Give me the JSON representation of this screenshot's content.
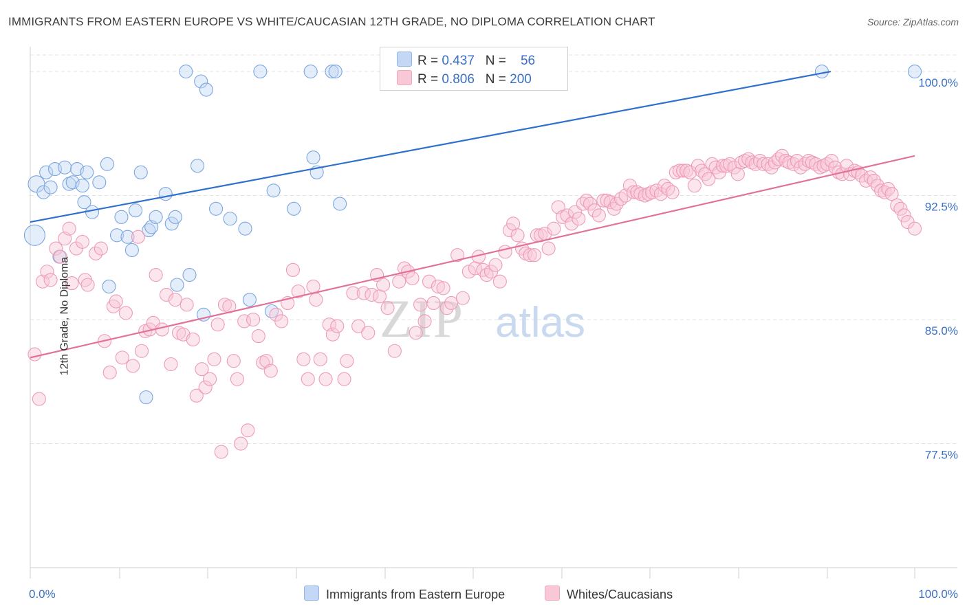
{
  "title": "IMMIGRANTS FROM EASTERN EUROPE VS WHITE/CAUCASIAN 12TH GRADE, NO DIPLOMA CORRELATION CHART",
  "source": "Source: ZipAtlas.com",
  "watermark": {
    "zip": "ZIP",
    "atlas": "atlas"
  },
  "legend": {
    "blue": {
      "r_label": "R = ",
      "r_value": "0.437",
      "n_label": "N = ",
      "n_value": "56"
    },
    "pink": {
      "r_label": "R = ",
      "r_value": "0.806",
      "n_label": "N = ",
      "n_value": "200"
    }
  },
  "colors": {
    "blue": "#8fb4e8",
    "blue_line": "#2f6fce",
    "pink": "#f2a7bf",
    "pink_line": "#e2729b",
    "grid": "#e3e3e3",
    "tick_label": "#3a6fc4"
  },
  "chart_data": {
    "type": "scatter",
    "xlabel": "",
    "ylabel": "12th Grade, No Diploma",
    "xlim": [
      0,
      100
    ],
    "ylim": [
      70.0,
      101.0
    ],
    "x_tick_labels": [
      "0.0%",
      "100.0%"
    ],
    "y_ticks": [
      77.5,
      85.0,
      92.5,
      100.0
    ],
    "y_tick_labels": [
      "77.5%",
      "85.0%",
      "92.5%",
      "100.0%"
    ],
    "grid": true,
    "legend_position": "top-center",
    "series": [
      {
        "name": "Immigrants from Eastern Europe",
        "color": "#8fb4e8",
        "trend": {
          "x0": 0,
          "y0": 90.9,
          "x1": 90.5,
          "y1": 100.0
        },
        "points": [
          [
            0.7,
            93.2
          ],
          [
            1.5,
            92.7
          ],
          [
            1.8,
            93.9
          ],
          [
            2.3,
            93.0
          ],
          [
            2.8,
            94.1
          ],
          [
            3.3,
            88.8
          ],
          [
            3.9,
            94.2
          ],
          [
            4.4,
            93.2
          ],
          [
            4.8,
            93.3
          ],
          [
            5.3,
            94.1
          ],
          [
            5.9,
            93.1
          ],
          [
            6.4,
            93.9
          ],
          [
            6.1,
            92.1
          ],
          [
            7.0,
            91.5
          ],
          [
            7.8,
            93.3
          ],
          [
            8.7,
            94.4
          ],
          [
            8.9,
            87.0
          ],
          [
            9.8,
            90.1
          ],
          [
            10.3,
            91.2
          ],
          [
            11.0,
            90.0
          ],
          [
            11.5,
            89.2
          ],
          [
            11.9,
            91.6
          ],
          [
            12.5,
            93.9
          ],
          [
            13.1,
            80.3
          ],
          [
            13.4,
            90.4
          ],
          [
            13.7,
            90.6
          ],
          [
            14.2,
            91.2
          ],
          [
            15.3,
            92.6
          ],
          [
            16.0,
            90.8
          ],
          [
            16.4,
            91.2
          ],
          [
            16.6,
            87.1
          ],
          [
            18.0,
            87.7
          ],
          [
            17.6,
            100.0
          ],
          [
            19.3,
            99.4
          ],
          [
            18.9,
            94.3
          ],
          [
            19.9,
            98.9
          ],
          [
            19.6,
            85.3
          ],
          [
            21.0,
            91.7
          ],
          [
            22.6,
            91.1
          ],
          [
            24.3,
            90.5
          ],
          [
            24.8,
            86.2
          ],
          [
            26.0,
            100.0
          ],
          [
            27.3,
            85.5
          ],
          [
            27.5,
            92.8
          ],
          [
            29.8,
            91.7
          ],
          [
            31.7,
            100.0
          ],
          [
            32.0,
            94.8
          ],
          [
            32.4,
            93.9
          ],
          [
            34.1,
            100.0
          ],
          [
            34.5,
            100.0
          ],
          [
            35.0,
            92.0
          ],
          [
            89.5,
            100.0
          ],
          [
            100.0,
            100.0
          ],
          [
            0.5,
            90.1
          ]
        ]
      },
      {
        "name": "Whites/Caucasians",
        "color": "#f2a7bf",
        "trend": {
          "x0": 0,
          "y0": 82.7,
          "x1": 100,
          "y1": 94.9
        },
        "points": [
          [
            0.5,
            82.9
          ],
          [
            1.0,
            80.2
          ],
          [
            1.4,
            87.3
          ],
          [
            1.9,
            87.9
          ],
          [
            2.3,
            87.4
          ],
          [
            2.9,
            89.3
          ],
          [
            3.4,
            88.8
          ],
          [
            3.9,
            89.9
          ],
          [
            4.4,
            90.5
          ],
          [
            4.7,
            87.2
          ],
          [
            5.2,
            89.3
          ],
          [
            5.9,
            89.7
          ],
          [
            6.2,
            87.4
          ],
          [
            6.5,
            87.1
          ],
          [
            7.4,
            89.0
          ],
          [
            8.0,
            89.3
          ],
          [
            8.4,
            83.7
          ],
          [
            9.0,
            81.8
          ],
          [
            9.4,
            85.8
          ],
          [
            9.7,
            86.1
          ],
          [
            10.4,
            82.7
          ],
          [
            10.8,
            85.4
          ],
          [
            11.6,
            82.2
          ],
          [
            12.2,
            90.0
          ],
          [
            12.6,
            83.1
          ],
          [
            13.0,
            84.3
          ],
          [
            13.5,
            84.4
          ],
          [
            13.9,
            84.8
          ],
          [
            14.2,
            87.7
          ],
          [
            14.9,
            84.4
          ],
          [
            15.4,
            86.5
          ],
          [
            15.9,
            82.3
          ],
          [
            16.4,
            86.2
          ],
          [
            16.8,
            84.2
          ],
          [
            17.3,
            84.1
          ],
          [
            17.7,
            85.9
          ],
          [
            18.4,
            83.8
          ],
          [
            18.8,
            80.4
          ],
          [
            19.4,
            82.0
          ],
          [
            19.8,
            80.9
          ],
          [
            20.3,
            81.4
          ],
          [
            20.8,
            82.6
          ],
          [
            21.2,
            84.7
          ],
          [
            21.6,
            77.0
          ],
          [
            22.0,
            85.9
          ],
          [
            22.5,
            85.8
          ],
          [
            23.0,
            82.5
          ],
          [
            23.4,
            81.4
          ],
          [
            23.8,
            77.5
          ],
          [
            24.2,
            84.9
          ],
          [
            24.6,
            78.3
          ],
          [
            25.2,
            85.0
          ],
          [
            25.8,
            84.0
          ],
          [
            26.3,
            82.4
          ],
          [
            26.7,
            82.5
          ],
          [
            27.2,
            81.9
          ],
          [
            27.8,
            85.3
          ],
          [
            28.4,
            84.9
          ],
          [
            29.1,
            86.0
          ],
          [
            29.7,
            88.0
          ],
          [
            30.3,
            86.7
          ],
          [
            30.9,
            82.6
          ],
          [
            31.4,
            81.4
          ],
          [
            32.0,
            87.0
          ],
          [
            32.3,
            86.2
          ],
          [
            32.8,
            82.6
          ],
          [
            33.4,
            81.4
          ],
          [
            33.8,
            84.7
          ],
          [
            34.2,
            84.1
          ],
          [
            34.7,
            84.6
          ],
          [
            35.5,
            81.4
          ],
          [
            35.8,
            82.5
          ],
          [
            36.5,
            86.6
          ],
          [
            37.1,
            84.6
          ],
          [
            37.7,
            86.6
          ],
          [
            38.2,
            84.2
          ],
          [
            38.6,
            86.5
          ],
          [
            39.2,
            87.7
          ],
          [
            39.5,
            86.4
          ],
          [
            39.9,
            87.1
          ],
          [
            40.4,
            85.7
          ],
          [
            41.2,
            83.1
          ],
          [
            41.7,
            87.3
          ],
          [
            42.3,
            88.1
          ],
          [
            42.7,
            87.9
          ],
          [
            43.2,
            87.5
          ],
          [
            43.6,
            84.2
          ],
          [
            44.1,
            85.9
          ],
          [
            44.6,
            84.9
          ],
          [
            45.1,
            87.3
          ],
          [
            45.6,
            86.0
          ],
          [
            46.1,
            87.0
          ],
          [
            46.7,
            86.9
          ],
          [
            47.1,
            85.7
          ],
          [
            47.6,
            86.0
          ],
          [
            48.3,
            88.9
          ],
          [
            48.9,
            86.3
          ],
          [
            49.6,
            87.9
          ],
          [
            50.3,
            88.1
          ],
          [
            50.7,
            88.8
          ],
          [
            51.2,
            88.0
          ],
          [
            51.6,
            87.7
          ],
          [
            52.1,
            87.9
          ],
          [
            52.6,
            88.3
          ],
          [
            53.1,
            87.3
          ],
          [
            53.7,
            89.1
          ],
          [
            54.2,
            90.4
          ],
          [
            54.6,
            90.8
          ],
          [
            55.1,
            90.1
          ],
          [
            55.6,
            89.3
          ],
          [
            56.0,
            89.0
          ],
          [
            56.5,
            88.9
          ],
          [
            57.0,
            88.9
          ],
          [
            57.3,
            90.1
          ],
          [
            57.7,
            90.1
          ],
          [
            58.2,
            90.2
          ],
          [
            58.6,
            89.3
          ],
          [
            59.2,
            90.5
          ],
          [
            59.7,
            91.8
          ],
          [
            60.2,
            91.2
          ],
          [
            60.7,
            91.3
          ],
          [
            61.2,
            90.8
          ],
          [
            61.6,
            91.5
          ],
          [
            62.0,
            91.1
          ],
          [
            62.5,
            92.0
          ],
          [
            62.9,
            92.2
          ],
          [
            63.3,
            92.0
          ],
          [
            63.8,
            91.6
          ],
          [
            64.3,
            91.3
          ],
          [
            64.8,
            92.2
          ],
          [
            65.2,
            92.2
          ],
          [
            65.6,
            92.1
          ],
          [
            66.0,
            91.7
          ],
          [
            66.3,
            92.0
          ],
          [
            66.8,
            92.3
          ],
          [
            67.3,
            92.5
          ],
          [
            67.8,
            93.1
          ],
          [
            68.2,
            92.7
          ],
          [
            68.6,
            92.7
          ],
          [
            69.0,
            92.6
          ],
          [
            69.5,
            92.5
          ],
          [
            69.9,
            92.6
          ],
          [
            70.3,
            92.7
          ],
          [
            70.8,
            92.8
          ],
          [
            71.3,
            92.6
          ],
          [
            71.7,
            93.1
          ],
          [
            72.1,
            92.9
          ],
          [
            72.6,
            92.7
          ],
          [
            73.0,
            93.9
          ],
          [
            73.4,
            94.0
          ],
          [
            73.8,
            94.0
          ],
          [
            74.2,
            94.0
          ],
          [
            74.6,
            93.9
          ],
          [
            75.1,
            93.1
          ],
          [
            75.5,
            94.3
          ],
          [
            75.9,
            94.0
          ],
          [
            76.3,
            93.8
          ],
          [
            76.7,
            93.5
          ],
          [
            77.1,
            94.4
          ],
          [
            77.5,
            94.2
          ],
          [
            77.9,
            93.9
          ],
          [
            78.3,
            94.3
          ],
          [
            78.7,
            94.3
          ],
          [
            79.1,
            94.4
          ],
          [
            79.6,
            94.2
          ],
          [
            80.0,
            93.8
          ],
          [
            80.4,
            94.5
          ],
          [
            80.8,
            94.6
          ],
          [
            81.2,
            94.7
          ],
          [
            81.6,
            94.5
          ],
          [
            82.0,
            94.4
          ],
          [
            82.5,
            94.6
          ],
          [
            82.9,
            94.4
          ],
          [
            83.4,
            94.4
          ],
          [
            83.8,
            94.2
          ],
          [
            84.2,
            94.5
          ],
          [
            84.6,
            94.7
          ],
          [
            85.0,
            94.9
          ],
          [
            85.4,
            94.6
          ],
          [
            85.8,
            94.5
          ],
          [
            86.3,
            94.4
          ],
          [
            86.7,
            94.6
          ],
          [
            87.1,
            94.2
          ],
          [
            87.6,
            94.4
          ],
          [
            88.0,
            94.6
          ],
          [
            88.4,
            94.5
          ],
          [
            88.8,
            94.4
          ],
          [
            89.3,
            94.2
          ],
          [
            89.7,
            94.3
          ],
          [
            90.1,
            94.4
          ],
          [
            90.6,
            94.6
          ],
          [
            91.0,
            94.2
          ],
          [
            91.4,
            93.9
          ],
          [
            91.8,
            93.8
          ],
          [
            92.3,
            94.3
          ],
          [
            92.7,
            93.8
          ],
          [
            93.2,
            94.0
          ],
          [
            93.6,
            93.9
          ],
          [
            94.0,
            93.7
          ],
          [
            94.5,
            93.4
          ],
          [
            95.0,
            93.6
          ],
          [
            95.4,
            93.4
          ],
          [
            95.8,
            93.1
          ],
          [
            96.2,
            92.8
          ],
          [
            96.6,
            92.7
          ],
          [
            97.0,
            92.9
          ],
          [
            97.4,
            92.6
          ],
          [
            98.0,
            91.9
          ],
          [
            98.4,
            91.7
          ],
          [
            98.8,
            91.3
          ],
          [
            99.2,
            90.9
          ],
          [
            100.0,
            90.5
          ]
        ]
      }
    ]
  }
}
